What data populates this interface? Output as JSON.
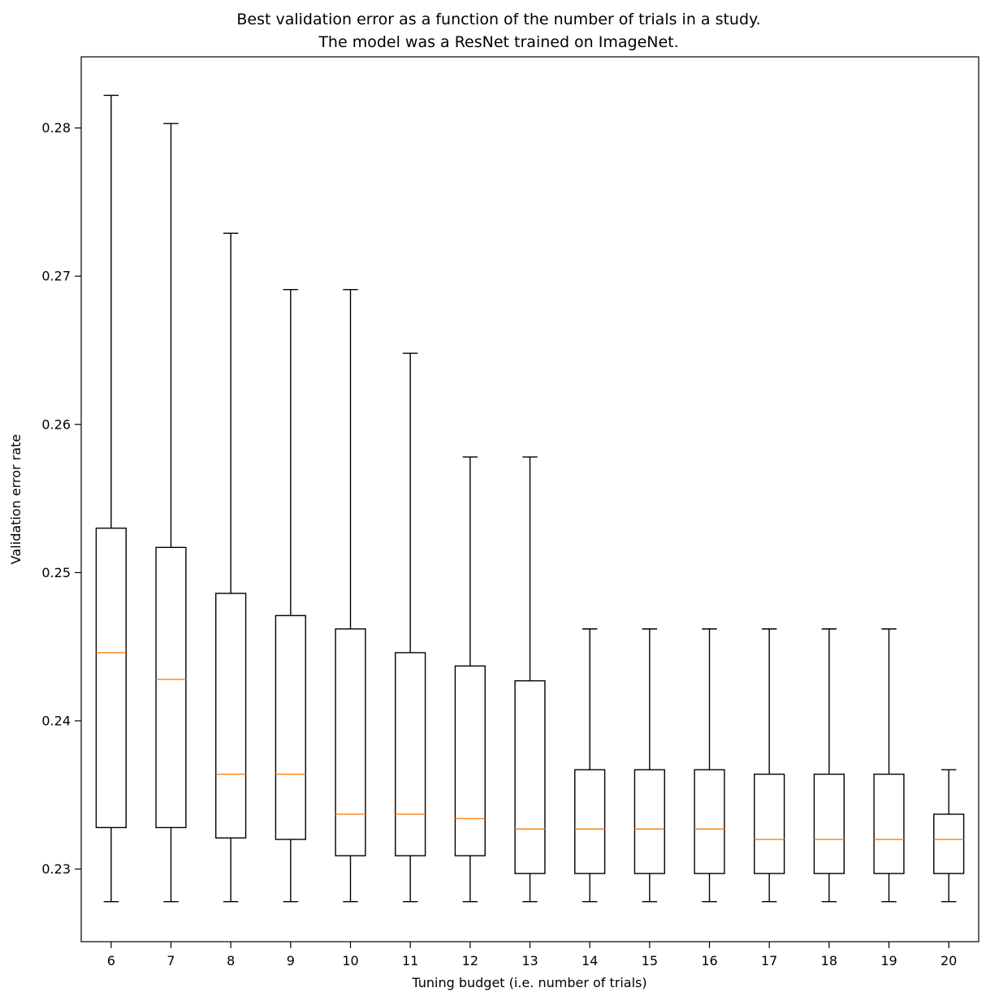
{
  "figure": {
    "title_line1": "Best validation error as a function of the number of trials in a study.",
    "title_line2": "The model was a ResNet trained on ImageNet."
  },
  "chart_data": {
    "type": "boxplot",
    "title": "Best validation error as a function of the number of trials in a study.\nThe model was a ResNet trained on ImageNet.",
    "title_line1": "Best validation error as a function of the number of trials in a study.",
    "title_line2": "The model was a ResNet trained on ImageNet.",
    "xlabel": "Tuning budget (i.e. number of trials)",
    "ylabel": "Validation error rate",
    "categories": [
      "6",
      "7",
      "8",
      "9",
      "10",
      "11",
      "12",
      "13",
      "14",
      "15",
      "16",
      "17",
      "18",
      "19",
      "20"
    ],
    "yticks": [
      0.23,
      0.24,
      0.25,
      0.26,
      0.27,
      0.28
    ],
    "ylim": [
      0.2251,
      0.2848
    ],
    "grid": false,
    "legend": "none",
    "line_color": "#000000",
    "median_color": "#ff7f0e",
    "box_fill": "#ffffff",
    "series": [
      {
        "label": "6",
        "whislo": 0.2278,
        "q1": 0.2328,
        "med": 0.2446,
        "q3": 0.253,
        "whishi": 0.2822
      },
      {
        "label": "7",
        "whislo": 0.2278,
        "q1": 0.2328,
        "med": 0.2428,
        "q3": 0.2517,
        "whishi": 0.2803
      },
      {
        "label": "8",
        "whislo": 0.2278,
        "q1": 0.2321,
        "med": 0.2364,
        "q3": 0.2486,
        "whishi": 0.2729
      },
      {
        "label": "9",
        "whislo": 0.2278,
        "q1": 0.232,
        "med": 0.2364,
        "q3": 0.2471,
        "whishi": 0.2691
      },
      {
        "label": "10",
        "whislo": 0.2278,
        "q1": 0.2309,
        "med": 0.2337,
        "q3": 0.2462,
        "whishi": 0.2691
      },
      {
        "label": "11",
        "whislo": 0.2278,
        "q1": 0.2309,
        "med": 0.2337,
        "q3": 0.2446,
        "whishi": 0.2648
      },
      {
        "label": "12",
        "whislo": 0.2278,
        "q1": 0.2309,
        "med": 0.2334,
        "q3": 0.2437,
        "whishi": 0.2578
      },
      {
        "label": "13",
        "whislo": 0.2278,
        "q1": 0.2297,
        "med": 0.2327,
        "q3": 0.2427,
        "whishi": 0.2578
      },
      {
        "label": "14",
        "whislo": 0.2278,
        "q1": 0.2297,
        "med": 0.2327,
        "q3": 0.2367,
        "whishi": 0.2462
      },
      {
        "label": "15",
        "whislo": 0.2278,
        "q1": 0.2297,
        "med": 0.2327,
        "q3": 0.2367,
        "whishi": 0.2462
      },
      {
        "label": "16",
        "whislo": 0.2278,
        "q1": 0.2297,
        "med": 0.2327,
        "q3": 0.2367,
        "whishi": 0.2462
      },
      {
        "label": "17",
        "whislo": 0.2278,
        "q1": 0.2297,
        "med": 0.232,
        "q3": 0.2364,
        "whishi": 0.2462
      },
      {
        "label": "18",
        "whislo": 0.2278,
        "q1": 0.2297,
        "med": 0.232,
        "q3": 0.2364,
        "whishi": 0.2462
      },
      {
        "label": "19",
        "whislo": 0.2278,
        "q1": 0.2297,
        "med": 0.232,
        "q3": 0.2364,
        "whishi": 0.2462
      },
      {
        "label": "20",
        "whislo": 0.2278,
        "q1": 0.2297,
        "med": 0.232,
        "q3": 0.2337,
        "whishi": 0.2367
      }
    ]
  }
}
